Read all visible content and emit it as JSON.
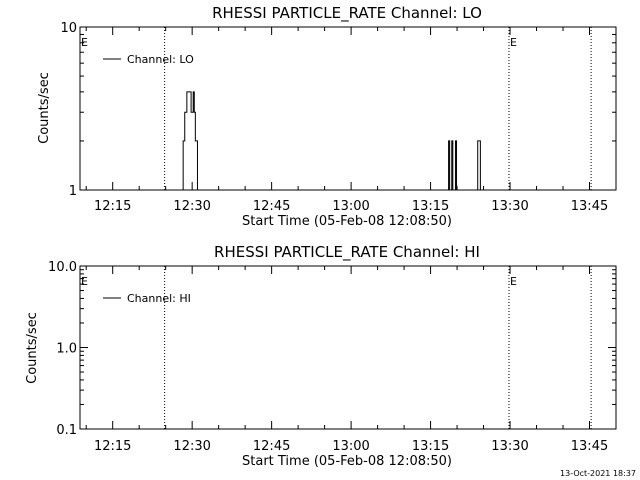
{
  "chart_data": [
    {
      "type": "line",
      "title": "RHESSI PARTICLE_RATE Channel: LO",
      "xlabel": "Start Time (05-Feb-08 12:08:50)",
      "ylabel": "Counts/sec",
      "x_tick_labels": [
        "12:15",
        "12:30",
        "12:45",
        "13:00",
        "13:15",
        "13:30",
        "13:45"
      ],
      "x_tick_minutes": [
        15,
        30,
        45,
        60,
        75,
        90,
        105
      ],
      "xlim_minutes": [
        8.83,
        110
      ],
      "y_scale": "log",
      "ylim": [
        1,
        10
      ],
      "y_tick_labels": [
        "1",
        "10"
      ],
      "y_tick_values": [
        1,
        10
      ],
      "legend": "top-left",
      "series": [
        {
          "name": "Channel: LO",
          "color": "#000000",
          "points": [
            [
              28.0,
              1
            ],
            [
              28.3,
              2
            ],
            [
              28.6,
              3
            ],
            [
              28.8,
              3
            ],
            [
              29.0,
              4
            ],
            [
              29.3,
              4
            ],
            [
              29.6,
              4
            ],
            [
              29.8,
              3
            ],
            [
              30.0,
              3
            ],
            [
              30.2,
              4
            ],
            [
              30.4,
              3
            ],
            [
              30.6,
              2
            ],
            [
              30.8,
              2
            ],
            [
              31.0,
              1
            ],
            [
              78.2,
              1
            ],
            [
              78.4,
              2
            ],
            [
              78.6,
              1
            ],
            [
              78.8,
              1
            ],
            [
              79.0,
              2
            ],
            [
              79.2,
              1
            ],
            [
              79.5,
              1
            ],
            [
              79.7,
              2
            ],
            [
              79.9,
              1
            ],
            [
              83.7,
              1
            ],
            [
              83.9,
              2
            ],
            [
              84.2,
              2
            ],
            [
              84.4,
              1
            ]
          ]
        }
      ],
      "markers": [
        {
          "label": "E",
          "x_minutes": 8.83
        },
        {
          "label": "E",
          "x_minutes": 89.8
        }
      ],
      "dotted_lines_minutes": [
        24.8,
        89.8,
        105.3
      ]
    },
    {
      "type": "line",
      "title": "RHESSI PARTICLE_RATE Channel: HI",
      "xlabel": "Start Time (05-Feb-08 12:08:50)",
      "ylabel": "Counts/sec",
      "x_tick_labels": [
        "12:15",
        "12:30",
        "12:45",
        "13:00",
        "13:15",
        "13:30",
        "13:45"
      ],
      "x_tick_minutes": [
        15,
        30,
        45,
        60,
        75,
        90,
        105
      ],
      "xlim_minutes": [
        8.83,
        110
      ],
      "y_scale": "log",
      "ylim": [
        0.1,
        10
      ],
      "y_tick_labels": [
        "0.1",
        "1.0",
        "10.0"
      ],
      "y_tick_values": [
        0.1,
        1,
        10
      ],
      "legend": "top-left",
      "series": [
        {
          "name": "Channel: HI",
          "color": "#000000",
          "points": []
        }
      ],
      "markers": [
        {
          "label": "E",
          "x_minutes": 8.83
        },
        {
          "label": "E",
          "x_minutes": 89.8
        }
      ],
      "dotted_lines_minutes": [
        24.8,
        89.8,
        105.3
      ]
    }
  ],
  "footer": {
    "timestamp": "13-Oct-2021 18:37"
  }
}
